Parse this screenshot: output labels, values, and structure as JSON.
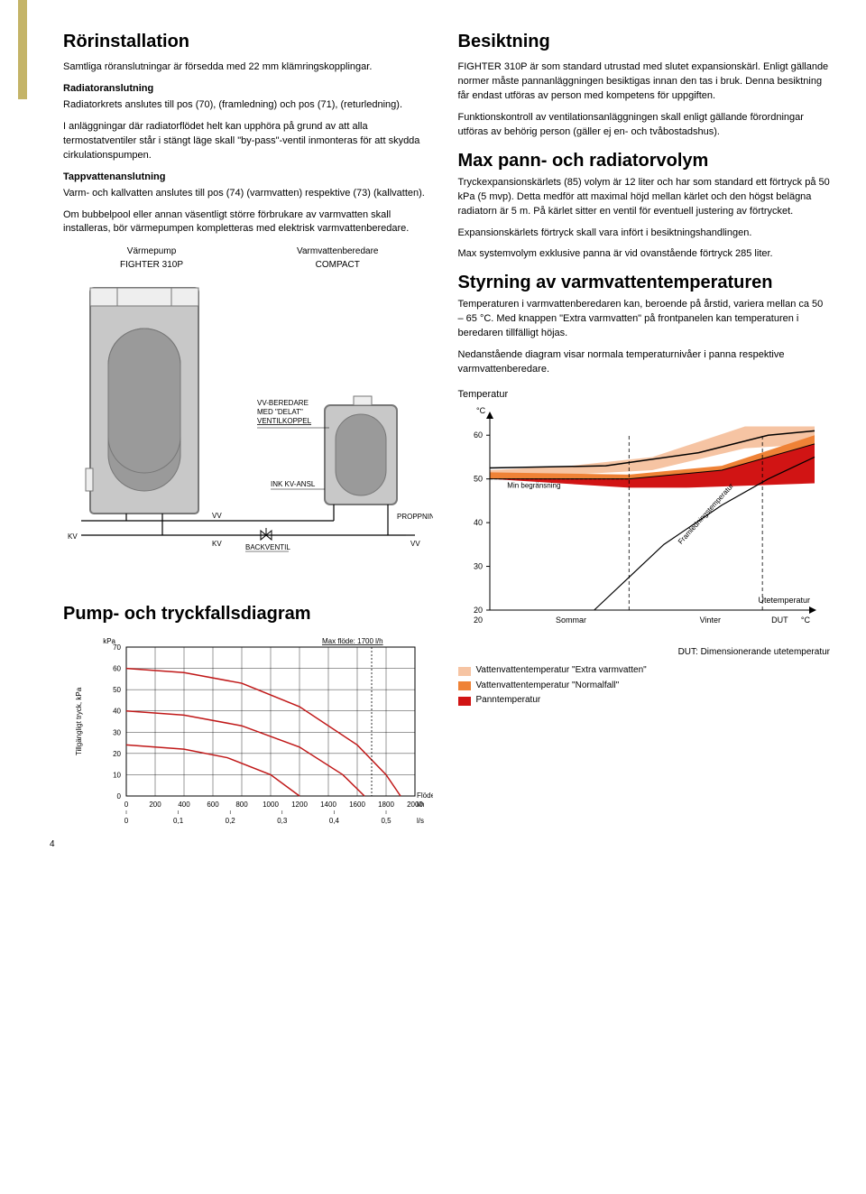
{
  "left": {
    "h1": "Rörinstallation",
    "p1": "Samtliga röranslutningar är försedda med 22 mm klämringskopplingar.",
    "h2": "Radiatoranslutning",
    "p2": "Radiatorkrets anslutes till pos (70), (framledning) och pos (71), (returledning).",
    "p3": "I anläggningar där radiatorflödet helt kan upphöra på grund av att alla termostatventiler står i stängt läge skall \"by-pass\"-ventil inmonteras för att skydda cirkulationspumpen.",
    "h3": "Tappvattenanslutning",
    "p4": "Varm- och kallvatten anslutes till pos (74) (varmvatten) respektive (73) (kallvatten).",
    "p5": "Om bubbelpool eller annan väsentligt större förbrukare av varmvatten skall installeras, bör värmepumpen kompletteras med elektrisk varmvattenberedare.",
    "diag_left_label_1": "Värmepump",
    "diag_left_label_2": "FIGHTER 310P",
    "diag_right_label_1": "Varmvattenberedare",
    "diag_right_label_2": "COMPACT",
    "piping": {
      "labels": {
        "vvberedare": "VV-BEREDARE\nMED \"DELAT\"\nVENTILKOPPEL",
        "ink": "INK KV-ANSL",
        "vv": "VV",
        "kv": "KV",
        "backventil": "BACKVENTIL",
        "proppning": "PROPPNING"
      },
      "colors": {
        "tank_fill": "#c8c8c8",
        "tank_stroke": "#777777",
        "inner_tank": "#9a9a9a",
        "line": "#000000"
      }
    },
    "pump_h": "Pump- och tryckfallsdiagram",
    "pump_chart": {
      "type": "line",
      "max_flow_label": "Max flöde: 1700 l/h",
      "ylabel": "Tillgängligt tryck, kPa",
      "yunit": "kPa",
      "xunit_top": "l/h",
      "xunit_bot": "l/s",
      "xlabel_right": "Flöde",
      "yticks": [
        0,
        10,
        20,
        30,
        40,
        50,
        60,
        70
      ],
      "xticks_lh": [
        0,
        200,
        400,
        600,
        800,
        1000,
        1200,
        1400,
        1600,
        1800,
        2000
      ],
      "xticks_ls": [
        0,
        0.1,
        0.2,
        0.3,
        0.4,
        0.5
      ],
      "xticks_ls_labels": [
        "0",
        "0,1",
        "0,2",
        "0,3",
        "0,4",
        "0,5"
      ],
      "ylim": [
        0,
        70
      ],
      "xlim": [
        0,
        2000
      ],
      "curve1": [
        [
          0,
          60
        ],
        [
          400,
          58
        ],
        [
          800,
          53
        ],
        [
          1200,
          42
        ],
        [
          1600,
          24
        ],
        [
          1800,
          10
        ],
        [
          1900,
          0
        ]
      ],
      "curve2": [
        [
          0,
          40
        ],
        [
          400,
          38
        ],
        [
          800,
          33
        ],
        [
          1200,
          23
        ],
        [
          1500,
          10
        ],
        [
          1650,
          0
        ]
      ],
      "curve3": [
        [
          0,
          24
        ],
        [
          400,
          22
        ],
        [
          700,
          18
        ],
        [
          1000,
          10
        ],
        [
          1200,
          0
        ]
      ],
      "line_color": "#c01818",
      "grid_color": "#000000",
      "dash_color": "#000000"
    }
  },
  "right": {
    "h1": "Besiktning",
    "p1": "FIGHTER 310P är som standard utrustad med slutet expansionskärl. Enligt gällande normer måste pannanläggningen besiktigas innan den tas i bruk. Denna besiktning får endast utföras av person med kompetens för uppgiften.",
    "p2": "Funktionskontroll av ventilationsanläggningen skall enligt gällande förordningar utföras av behörig person (gäller ej en- och tvåbostadshus).",
    "h2": "Max pann- och radiatorvolym",
    "p3": "Tryckexpansionskärlets (85) volym är 12 liter och har som standard ett förtryck på 50 kPa (5 mvp). Detta medför att maximal höjd mellan kärlet och den högst belägna radiatorn är 5 m. På kärlet sitter en ventil för eventuell justering av förtrycket.",
    "p4": "Expansionskärlets förtryck skall vara infört i besiktningshandlingen.",
    "p5": "Max systemvolym exklusive panna är vid ovanstående förtryck 285 liter.",
    "h3": "Styrning av varmvattentemperaturen",
    "p6": "Temperaturen i varmvattenberedaren kan, beroende på årstid, variera mellan ca 50 – 65 °C. Med knappen \"Extra varmvatten\" på frontpanelen kan temperaturen i beredaren tillfälligt höjas.",
    "p7": "Nedanstående diagram visar normala temperaturnivåer i panna respektive varmvattenberedare.",
    "temp_chart": {
      "type": "area-line",
      "title": "Temperatur",
      "yunit": "°C",
      "yticks": [
        20,
        30,
        40,
        50,
        60
      ],
      "ylim": [
        20,
        65
      ],
      "xlabels": [
        "Sommar",
        "Vinter",
        "DUT"
      ],
      "xaxis_left": "20",
      "right_label_1": "Utetemperatur",
      "right_label_2": "°C",
      "min_label": "Min begränsning",
      "framled_label": "Framledningstemperatur",
      "dut_caption": "DUT: Dimensionerande utetemperatur",
      "colors": {
        "band_light": "#f6c4a3",
        "band_mid": "#ef8236",
        "band_dark": "#d11414",
        "line_black": "#000000",
        "grid": "#000000"
      },
      "band_light_path": [
        [
          0,
          52
        ],
        [
          70,
          53
        ],
        [
          140,
          55
        ],
        [
          220,
          62
        ],
        [
          280,
          62
        ],
        [
          280,
          58
        ],
        [
          220,
          57
        ],
        [
          140,
          52
        ],
        [
          70,
          51
        ],
        [
          0,
          51
        ]
      ],
      "band_dark_path": [
        [
          0,
          50
        ],
        [
          120,
          50
        ],
        [
          200,
          52
        ],
        [
          280,
          58
        ],
        [
          280,
          49
        ],
        [
          170,
          48
        ],
        [
          120,
          48
        ],
        [
          0,
          50
        ]
      ],
      "pann_line": [
        [
          0,
          50
        ],
        [
          120,
          50
        ],
        [
          200,
          52
        ],
        [
          280,
          58
        ]
      ],
      "framled_curve": [
        [
          90,
          20
        ],
        [
          150,
          35
        ],
        [
          200,
          44
        ],
        [
          240,
          50
        ],
        [
          280,
          55
        ]
      ]
    },
    "legend": [
      {
        "color": "#f6c4a3",
        "label": "Vattenvattentemperatur \"Extra varmvatten\""
      },
      {
        "color": "#ef8236",
        "label": "Vattenvattentemperatur \"Normalfall\""
      },
      {
        "color": "#d11414",
        "label": "Panntemperatur"
      }
    ]
  },
  "page_number": "4"
}
